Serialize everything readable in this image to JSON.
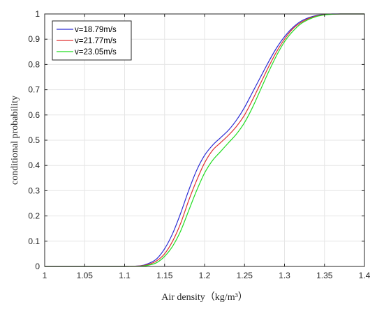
{
  "chart_data": {
    "type": "line",
    "title": "",
    "xlabel": "Air density（kg/m³）",
    "ylabel": "conditional probability",
    "xlim": [
      1,
      1.4
    ],
    "ylim": [
      0,
      1
    ],
    "xticks": [
      1,
      1.05,
      1.1,
      1.15,
      1.2,
      1.25,
      1.3,
      1.35,
      1.4
    ],
    "xtick_labels": [
      "1",
      "1.05",
      "1.1",
      "1.15",
      "1.2",
      "1.25",
      "1.3",
      "1.35",
      "1.4"
    ],
    "yticks": [
      0,
      0.1,
      0.2,
      0.3,
      0.4,
      0.5,
      0.6,
      0.7,
      0.8,
      0.9,
      1
    ],
    "ytick_labels": [
      "0",
      "0.1",
      "0.2",
      "0.3",
      "0.4",
      "0.5",
      "0.6",
      "0.7",
      "0.8",
      "0.9",
      "1"
    ],
    "grid": true,
    "legend_position": "top-left",
    "x": [
      1.0,
      1.05,
      1.1,
      1.12,
      1.13,
      1.14,
      1.15,
      1.16,
      1.17,
      1.18,
      1.19,
      1.2,
      1.21,
      1.22,
      1.23,
      1.24,
      1.25,
      1.26,
      1.27,
      1.28,
      1.29,
      1.3,
      1.31,
      1.32,
      1.33,
      1.34,
      1.35,
      1.36,
      1.37,
      1.38,
      1.4
    ],
    "series": [
      {
        "name": "v=18.79m/s",
        "color": "#2b2bd4",
        "values": [
          0,
          0,
          0,
          0.003,
          0.012,
          0.03,
          0.07,
          0.13,
          0.21,
          0.3,
          0.38,
          0.44,
          0.48,
          0.51,
          0.54,
          0.58,
          0.63,
          0.69,
          0.75,
          0.81,
          0.865,
          0.91,
          0.945,
          0.97,
          0.985,
          0.994,
          0.998,
          1,
          1,
          1,
          1
        ]
      },
      {
        "name": "v=21.77m/s",
        "color": "#e03030",
        "values": [
          0,
          0,
          0,
          0.002,
          0.008,
          0.022,
          0.05,
          0.1,
          0.17,
          0.26,
          0.34,
          0.41,
          0.46,
          0.49,
          0.52,
          0.555,
          0.6,
          0.66,
          0.725,
          0.79,
          0.85,
          0.9,
          0.94,
          0.965,
          0.982,
          0.992,
          0.997,
          0.999,
          1,
          1,
          1
        ]
      },
      {
        "name": "v=23.05m/s",
        "color": "#22dd22",
        "values": [
          0,
          0,
          0,
          0.001,
          0.005,
          0.015,
          0.04,
          0.08,
          0.14,
          0.22,
          0.3,
          0.37,
          0.42,
          0.455,
          0.49,
          0.525,
          0.57,
          0.63,
          0.7,
          0.77,
          0.835,
          0.89,
          0.93,
          0.96,
          0.978,
          0.99,
          0.996,
          0.999,
          1,
          1,
          1
        ]
      }
    ]
  }
}
